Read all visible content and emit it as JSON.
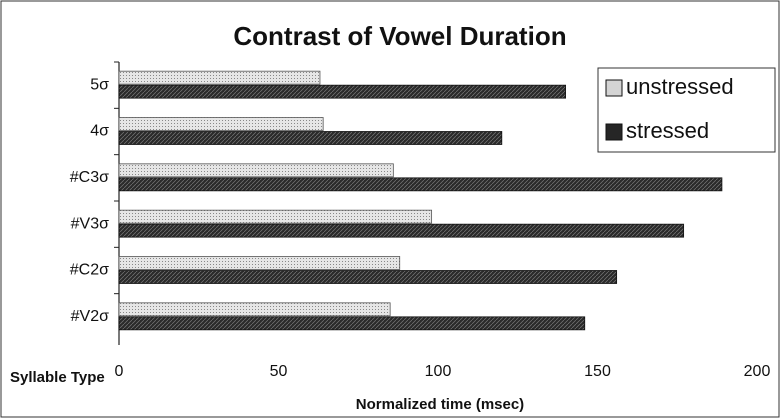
{
  "chart_data": {
    "type": "hbar",
    "title": "Contrast of Vowel Duration",
    "x_label": "Normalized time (msec)",
    "y_label": "Syllable Type",
    "categories": [
      "5σ",
      "4σ",
      "#C3σ",
      "#V3σ",
      "#C2σ",
      "#V2σ"
    ],
    "series": [
      {
        "name": "unstressed",
        "color": "#d4d4d4",
        "values": [
          63,
          64,
          86,
          98,
          88,
          85
        ]
      },
      {
        "name": "stressed",
        "color": "#262626",
        "values": [
          140,
          120,
          189,
          177,
          156,
          146
        ]
      }
    ],
    "xlim": [
      0,
      200
    ],
    "xticks": [
      0,
      50,
      100,
      150,
      200
    ],
    "grid": false,
    "legend": "top-right"
  }
}
